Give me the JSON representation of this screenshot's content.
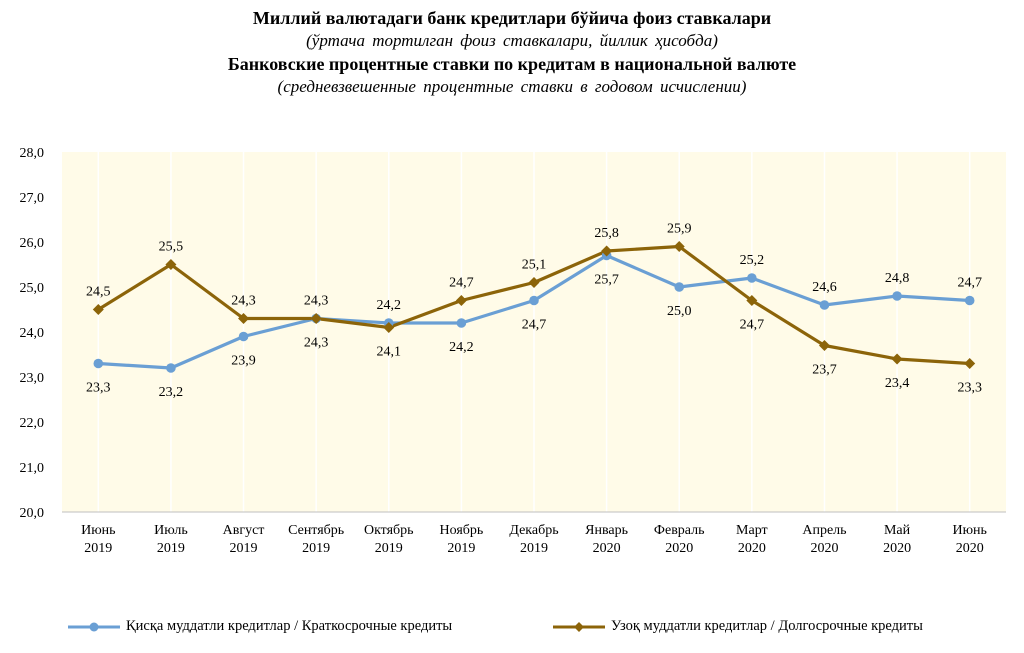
{
  "titles": {
    "uz_title": "Миллий валютадаги банк кредитлари бўйича фоиз ставкалари",
    "uz_subtitle": "(ўртача тортилган фоиз ставкалари, йиллик ҳисобда)",
    "ru_title": "Банковские процентные ставки по кредитам в национальной валюте",
    "ru_subtitle": "(средневзвешенные процентные ставки в годовом исчислении)"
  },
  "chart_data": {
    "type": "line",
    "categories": [
      [
        "Июнь",
        "2019"
      ],
      [
        "Июль",
        "2019"
      ],
      [
        "Август",
        "2019"
      ],
      [
        "Сентябрь",
        "2019"
      ],
      [
        "Октябрь",
        "2019"
      ],
      [
        "Ноябрь",
        "2019"
      ],
      [
        "Декабрь",
        "2019"
      ],
      [
        "Январь",
        "2020"
      ],
      [
        "Февраль",
        "2020"
      ],
      [
        "Март",
        "2020"
      ],
      [
        "Апрель",
        "2020"
      ],
      [
        "Май",
        "2020"
      ],
      [
        "Июнь",
        "2020"
      ]
    ],
    "ylim": [
      20.0,
      28.0
    ],
    "yticks": [
      "20,0",
      "21,0",
      "22,0",
      "23,0",
      "24,0",
      "25,0",
      "26,0",
      "27,0",
      "28,0"
    ],
    "grid": "vertical",
    "legend": "bottom",
    "series": [
      {
        "name": "Қисқа муддатли кредитлар / Краткосрочные кредиты",
        "color": "#6a9fd4",
        "marker": "circle",
        "values": [
          23.3,
          23.2,
          23.9,
          24.3,
          24.2,
          24.2,
          24.7,
          25.7,
          25.0,
          25.2,
          24.6,
          24.8,
          24.7
        ],
        "labels": [
          "23,3",
          "23,2",
          "23,9",
          "24,3",
          "24,2",
          "24,2",
          "24,7",
          "25,7",
          "25,0",
          "25,2",
          "24,6",
          "24,8",
          "24,7"
        ]
      },
      {
        "name": "Узоқ муддатли кредитлар / Долгосрочные кредиты",
        "color": "#8c6409",
        "marker": "diamond",
        "values": [
          24.5,
          25.5,
          24.3,
          24.3,
          24.1,
          24.7,
          25.1,
          25.8,
          25.9,
          24.7,
          23.7,
          23.4,
          23.3
        ],
        "labels": [
          "24,5",
          "25,5",
          "24,3",
          "24,3",
          "24,1",
          "24,7",
          "25,1",
          "25,8",
          "25,9",
          "24,7",
          "23,7",
          "23,4",
          "23,3"
        ]
      }
    ]
  }
}
